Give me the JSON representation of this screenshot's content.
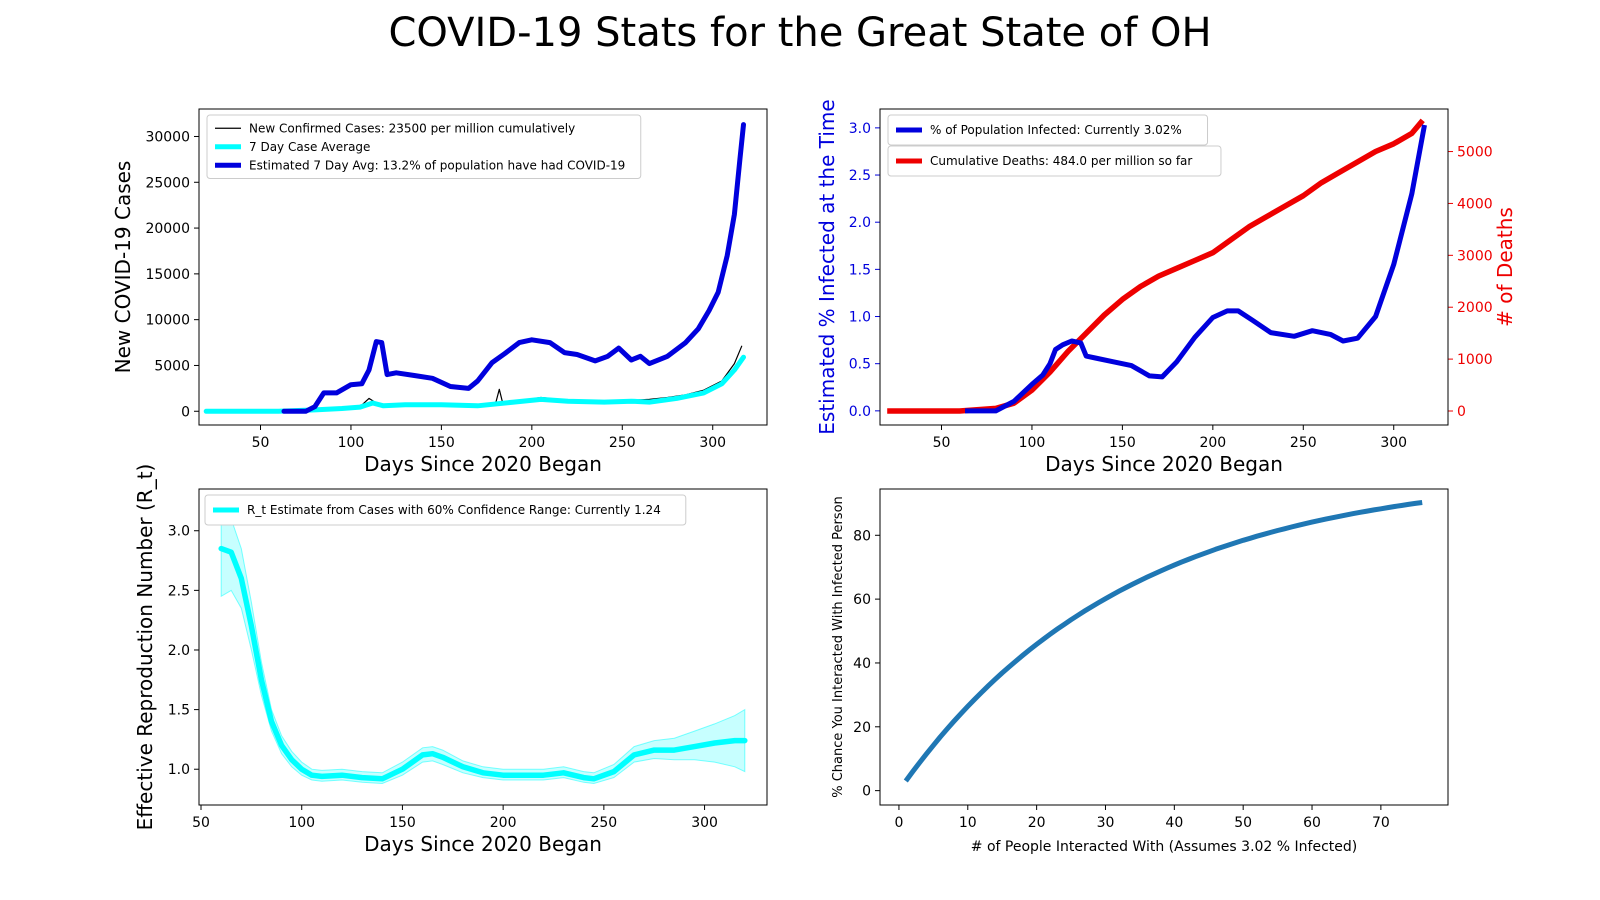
{
  "title": "COVID-19 Stats for the Great State of OH",
  "chart_data": [
    {
      "type": "line",
      "xlabel": "Days Since 2020 Began",
      "ylabel": "New COVID-19 Cases",
      "xlim": [
        16,
        330
      ],
      "ylim": [
        -1500,
        33000
      ],
      "xticks": [
        50,
        100,
        150,
        200,
        250,
        300
      ],
      "yticks": [
        0,
        5000,
        10000,
        15000,
        20000,
        25000,
        30000
      ],
      "legend_position": "top-left",
      "grid": false,
      "series": [
        {
          "name": "New Confirmed Cases: 23500 per million cumulatively",
          "color": "#000000",
          "x": [
            20,
            60,
            80,
            95,
            105,
            110,
            114,
            118,
            125,
            140,
            160,
            180,
            182,
            184,
            195,
            205,
            215,
            225,
            235,
            245,
            255,
            265,
            275,
            285,
            295,
            305,
            312,
            316
          ],
          "y": [
            0,
            0,
            200,
            350,
            500,
            1400,
            900,
            500,
            700,
            800,
            600,
            900,
            2400,
            800,
            1200,
            1500,
            1300,
            1100,
            1000,
            900,
            1200,
            1300,
            1500,
            1800,
            2300,
            3300,
            5200,
            7100
          ]
        },
        {
          "name": "7 Day Case Average",
          "color": "#00ffff",
          "x": [
            20,
            60,
            80,
            95,
            105,
            112,
            118,
            130,
            150,
            170,
            190,
            205,
            220,
            240,
            255,
            265,
            280,
            295,
            305,
            312,
            317
          ],
          "y": [
            0,
            0,
            150,
            300,
            450,
            900,
            600,
            700,
            700,
            600,
            1000,
            1300,
            1100,
            1000,
            1100,
            1000,
            1400,
            2000,
            3000,
            4500,
            5900
          ]
        },
        {
          "name": "Estimated 7 Day Avg: 13.2% of population have had COVID-19",
          "color": "#0000dd",
          "x": [
            63,
            75,
            80,
            85,
            92,
            100,
            106,
            110,
            114,
            117,
            120,
            125,
            135,
            145,
            155,
            165,
            170,
            178,
            185,
            193,
            200,
            210,
            218,
            225,
            235,
            242,
            248,
            255,
            260,
            265,
            275,
            285,
            292,
            298,
            303,
            308,
            312,
            315,
            317
          ],
          "y": [
            0,
            0,
            500,
            2000,
            2000,
            2900,
            3000,
            4500,
            7600,
            7500,
            4000,
            4200,
            3900,
            3600,
            2700,
            2500,
            3300,
            5300,
            6300,
            7500,
            7800,
            7500,
            6400,
            6200,
            5500,
            6000,
            6900,
            5600,
            6000,
            5200,
            6000,
            7500,
            9000,
            11000,
            13000,
            17000,
            21500,
            27500,
            31300
          ]
        }
      ]
    },
    {
      "type": "line",
      "xlabel": "Days Since 2020 Began",
      "ylabel": "Estimated % Infected at the Time",
      "y2label": "# of Deaths",
      "xlim": [
        16,
        330
      ],
      "ylim": [
        -0.15,
        3.2
      ],
      "y2lim": [
        -270,
        5820
      ],
      "xticks": [
        50,
        100,
        150,
        200,
        250,
        300
      ],
      "yticks": [
        0.0,
        0.5,
        1.0,
        1.5,
        2.0,
        2.5,
        3.0
      ],
      "y2ticks": [
        0,
        1000,
        2000,
        3000,
        4000,
        5000
      ],
      "legend_position": "top-left",
      "grid": false,
      "series": [
        {
          "name": "% of Population Infected: Currently 3.02%",
          "color": "#0000dd",
          "axis": "left",
          "x": [
            63,
            80,
            90,
            100,
            106,
            110,
            113,
            117,
            122,
            127,
            130,
            135,
            145,
            155,
            165,
            172,
            180,
            190,
            200,
            208,
            214,
            222,
            232,
            245,
            255,
            265,
            272,
            280,
            290,
            300,
            310,
            317
          ],
          "y": [
            0,
            0,
            0.1,
            0.28,
            0.38,
            0.5,
            0.65,
            0.7,
            0.74,
            0.72,
            0.58,
            0.56,
            0.52,
            0.48,
            0.37,
            0.36,
            0.52,
            0.78,
            0.99,
            1.06,
            1.06,
            0.96,
            0.83,
            0.79,
            0.85,
            0.81,
            0.74,
            0.77,
            1.0,
            1.55,
            2.3,
            3.03
          ]
        },
        {
          "name": "Cumulative Deaths: 484.0 per million so far",
          "color": "#ee0000",
          "axis": "right",
          "x": [
            20,
            60,
            80,
            90,
            100,
            110,
            120,
            130,
            140,
            150,
            160,
            170,
            180,
            190,
            200,
            210,
            220,
            230,
            240,
            250,
            260,
            270,
            280,
            290,
            300,
            310,
            316
          ],
          "y": [
            0,
            0,
            50,
            150,
            400,
            750,
            1150,
            1500,
            1850,
            2150,
            2400,
            2600,
            2750,
            2900,
            3050,
            3300,
            3550,
            3750,
            3950,
            4150,
            4400,
            4600,
            4800,
            5000,
            5150,
            5350,
            5600
          ]
        }
      ]
    },
    {
      "type": "line",
      "xlabel": "Days Since 2020 Began",
      "ylabel": "Effective Reproduction Number (R_t)",
      "xlim": [
        49,
        331
      ],
      "ylim": [
        0.7,
        3.35
      ],
      "xticks": [
        50,
        100,
        150,
        200,
        250,
        300
      ],
      "yticks": [
        1.0,
        1.5,
        2.0,
        2.5,
        3.0
      ],
      "legend_position": "top-left",
      "grid": false,
      "series": [
        {
          "name": "R_t Estimate from Cases with 60% Confidence Range: Currently 1.24",
          "color": "#00ffff",
          "x": [
            60,
            65,
            70,
            75,
            80,
            85,
            90,
            95,
            100,
            105,
            110,
            120,
            130,
            140,
            150,
            160,
            165,
            170,
            180,
            190,
            200,
            210,
            220,
            230,
            240,
            245,
            255,
            265,
            275,
            285,
            295,
            305,
            315,
            320
          ],
          "y": [
            2.85,
            2.82,
            2.6,
            2.2,
            1.75,
            1.4,
            1.2,
            1.08,
            1.0,
            0.95,
            0.94,
            0.95,
            0.93,
            0.92,
            1.0,
            1.12,
            1.13,
            1.1,
            1.02,
            0.97,
            0.95,
            0.95,
            0.95,
            0.97,
            0.93,
            0.92,
            0.98,
            1.12,
            1.16,
            1.16,
            1.19,
            1.22,
            1.24,
            1.24
          ],
          "lower": [
            2.45,
            2.5,
            2.35,
            2.0,
            1.62,
            1.32,
            1.13,
            1.02,
            0.95,
            0.91,
            0.9,
            0.91,
            0.89,
            0.88,
            0.95,
            1.06,
            1.07,
            1.04,
            0.97,
            0.93,
            0.91,
            0.91,
            0.91,
            0.93,
            0.89,
            0.88,
            0.93,
            1.06,
            1.09,
            1.08,
            1.08,
            1.06,
            1.02,
            0.98
          ],
          "upper": [
            3.15,
            3.1,
            2.85,
            2.4,
            1.9,
            1.5,
            1.28,
            1.15,
            1.06,
            1.0,
            0.99,
            1.0,
            0.98,
            0.97,
            1.06,
            1.18,
            1.19,
            1.16,
            1.07,
            1.02,
            1.0,
            1.0,
            1.0,
            1.02,
            0.98,
            0.97,
            1.04,
            1.19,
            1.24,
            1.26,
            1.32,
            1.38,
            1.45,
            1.5
          ]
        }
      ]
    },
    {
      "type": "line",
      "xlabel": "# of People Interacted With (Assumes 3.02 % Infected)",
      "ylabel": "% Chance You Interacted With Infected Person",
      "xlim": [
        -2.75,
        79.75
      ],
      "ylim": [
        -4.5,
        94.5
      ],
      "xticks": [
        0,
        10,
        20,
        30,
        40,
        50,
        60,
        70
      ],
      "yticks": [
        0,
        20,
        40,
        60,
        80
      ],
      "grid": false,
      "series": [
        {
          "color": "#1f77b4",
          "infected_fraction": 0.0302,
          "x_range": [
            1,
            76
          ]
        }
      ]
    }
  ]
}
